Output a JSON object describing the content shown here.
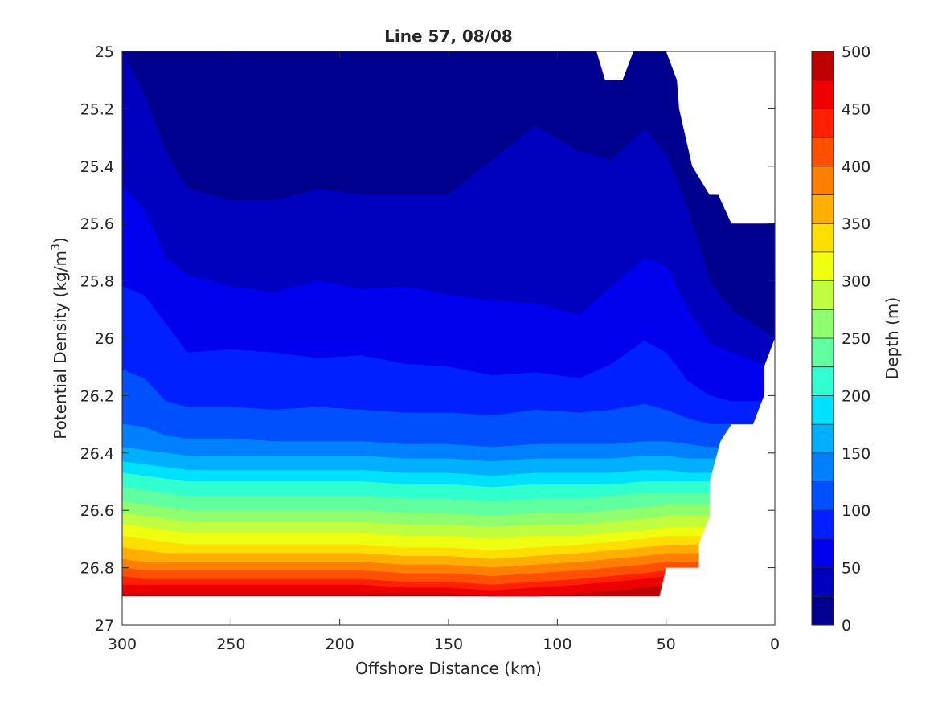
{
  "chart_data": {
    "type": "filled-contour",
    "title": "Line 57, 08/08",
    "xlabel": "Offshore Distance (km)",
    "ylabel": "Potential Density (kg/m3)",
    "ylabel_main": "Potential Density (kg/m",
    "ylabel_sup": "3",
    "ylabel_close": ")",
    "colorbar_label": "Depth (m)",
    "xlim": [
      300,
      0
    ],
    "x_reversed": true,
    "ylim": [
      25,
      27
    ],
    "y_reversed": true,
    "x_ticks": [
      "300",
      "250",
      "200",
      "150",
      "100",
      "50",
      "0"
    ],
    "x_tick_values": [
      300,
      250,
      200,
      150,
      100,
      50,
      0
    ],
    "y_ticks": [
      "25",
      "25.2",
      "25.4",
      "25.6",
      "25.8",
      "26",
      "26.2",
      "26.4",
      "26.6",
      "26.8",
      "27"
    ],
    "y_tick_values": [
      25,
      25.2,
      25.4,
      25.6,
      25.8,
      26,
      26.2,
      26.4,
      26.6,
      26.8,
      27
    ],
    "colorbar_ticks": [
      "0",
      "50",
      "100",
      "150",
      "200",
      "250",
      "300",
      "350",
      "400",
      "450",
      "500"
    ],
    "colorbar_tick_values": [
      0,
      50,
      100,
      150,
      200,
      250,
      300,
      350,
      400,
      450,
      500
    ],
    "clim": [
      0,
      500
    ],
    "level_step": 25,
    "colormap": "jet",
    "level_colors": [
      "#00008F",
      "#0000BF",
      "#0000EF",
      "#0020FF",
      "#0050FF",
      "#0080FF",
      "#00B0FF",
      "#00E0FF",
      "#30FFCF",
      "#60FF9F",
      "#90FF6F",
      "#C0FF3F",
      "#EFFF10",
      "#FFDF00",
      "#FFAF00",
      "#FF8000",
      "#FF5000",
      "#FF2000",
      "#EF0000",
      "#BF0000"
    ],
    "contour_x": [
      300,
      290,
      280,
      270,
      250,
      230,
      210,
      190,
      170,
      150,
      130,
      110,
      90,
      75,
      60,
      50,
      40,
      30,
      20,
      10,
      0
    ],
    "isolines": [
      {
        "level": 25,
        "y": [
          25.0,
          25.15,
          25.35,
          25.48,
          25.52,
          25.52,
          25.48,
          25.5,
          25.5,
          25.5,
          25.38,
          25.26,
          25.35,
          25.38,
          25.27,
          25.36,
          25.55,
          25.8,
          25.9,
          25.95,
          26.0
        ]
      },
      {
        "level": 50,
        "y": [
          25.47,
          25.55,
          25.72,
          25.78,
          25.82,
          25.84,
          25.8,
          25.83,
          25.82,
          25.85,
          25.87,
          25.88,
          25.92,
          25.82,
          25.72,
          25.75,
          25.9,
          26.02,
          26.05,
          26.08,
          26.1
        ]
      },
      {
        "level": 75,
        "y": [
          25.82,
          25.85,
          25.95,
          26.05,
          26.04,
          26.05,
          26.07,
          26.06,
          26.09,
          26.1,
          26.13,
          26.12,
          26.14,
          26.09,
          26.01,
          26.05,
          26.15,
          26.2,
          26.22,
          26.22,
          26.22
        ]
      },
      {
        "level": 100,
        "y": [
          26.11,
          26.14,
          26.22,
          26.24,
          26.24,
          26.25,
          26.24,
          26.25,
          26.26,
          26.26,
          26.27,
          26.25,
          26.26,
          26.25,
          26.23,
          26.25,
          26.28,
          26.3,
          26.3,
          26.3,
          26.3
        ]
      },
      {
        "level": 125,
        "y": [
          26.3,
          26.31,
          26.34,
          26.35,
          26.35,
          26.36,
          26.36,
          26.36,
          26.37,
          26.37,
          26.38,
          26.37,
          26.37,
          26.37,
          26.36,
          26.36,
          26.37,
          26.38,
          26.38,
          26.38,
          26.38
        ]
      },
      {
        "level": 150,
        "y": [
          26.38,
          26.39,
          26.4,
          26.41,
          26.41,
          26.41,
          26.41,
          26.41,
          26.42,
          26.42,
          26.43,
          26.42,
          26.42,
          26.42,
          26.41,
          26.41,
          26.42,
          26.42,
          26.42,
          26.42,
          26.42
        ]
      },
      {
        "level": 175,
        "y": [
          26.43,
          26.44,
          26.45,
          26.46,
          26.46,
          26.46,
          26.46,
          26.46,
          26.47,
          26.47,
          26.48,
          26.47,
          26.47,
          26.47,
          26.46,
          26.46,
          26.47,
          26.47,
          26.47,
          26.47,
          26.47
        ]
      },
      {
        "level": 200,
        "y": [
          26.47,
          26.48,
          26.49,
          26.5,
          26.5,
          26.5,
          26.5,
          26.5,
          26.51,
          26.51,
          26.52,
          26.51,
          26.51,
          26.51,
          26.5,
          26.5,
          26.5,
          26.5,
          26.5,
          26.5,
          26.5
        ]
      },
      {
        "level": 225,
        "y": [
          26.52,
          26.53,
          26.54,
          26.55,
          26.55,
          26.55,
          26.55,
          26.55,
          26.56,
          26.56,
          26.57,
          26.56,
          26.56,
          26.55,
          26.54,
          26.54,
          26.54,
          26.54,
          26.54,
          26.54,
          26.54
        ]
      },
      {
        "level": 250,
        "y": [
          26.57,
          26.58,
          26.59,
          26.6,
          26.6,
          26.6,
          26.6,
          26.6,
          26.61,
          26.61,
          26.62,
          26.61,
          26.61,
          26.6,
          26.59,
          26.58,
          26.58,
          26.58,
          26.58,
          26.58,
          26.58
        ]
      },
      {
        "level": 275,
        "y": [
          26.61,
          26.62,
          26.63,
          26.64,
          26.64,
          26.64,
          26.64,
          26.64,
          26.65,
          26.65,
          26.66,
          26.65,
          26.65,
          26.64,
          26.63,
          26.62,
          26.62,
          26.62,
          26.62,
          26.62,
          26.62
        ]
      },
      {
        "level": 300,
        "y": [
          26.65,
          26.66,
          26.67,
          26.68,
          26.68,
          26.68,
          26.68,
          26.68,
          26.69,
          26.69,
          26.7,
          26.69,
          26.69,
          26.68,
          26.67,
          26.66,
          26.66,
          26.66,
          26.66,
          26.66,
          26.66
        ]
      },
      {
        "level": 325,
        "y": [
          26.69,
          26.7,
          26.71,
          26.72,
          26.72,
          26.72,
          26.72,
          26.72,
          26.73,
          26.73,
          26.74,
          26.73,
          26.72,
          26.71,
          26.7,
          26.69,
          26.69,
          26.69,
          26.69,
          26.69,
          26.69
        ]
      },
      {
        "level": 350,
        "y": [
          26.73,
          26.74,
          26.75,
          26.75,
          26.75,
          26.75,
          26.75,
          26.75,
          26.76,
          26.76,
          26.77,
          26.76,
          26.75,
          26.74,
          26.73,
          26.72,
          26.72,
          26.72,
          26.72,
          26.72,
          26.72
        ]
      },
      {
        "level": 375,
        "y": [
          26.77,
          26.78,
          26.78,
          26.78,
          26.78,
          26.78,
          26.78,
          26.78,
          26.79,
          26.79,
          26.8,
          26.79,
          26.78,
          26.77,
          26.76,
          26.75,
          26.75,
          26.75,
          26.75,
          26.75,
          26.75
        ]
      },
      {
        "level": 400,
        "y": [
          26.8,
          26.81,
          26.81,
          26.81,
          26.81,
          26.81,
          26.81,
          26.81,
          26.82,
          26.82,
          26.83,
          26.82,
          26.81,
          26.8,
          26.79,
          26.78,
          26.78,
          26.78,
          26.78,
          26.78,
          26.78
        ]
      },
      {
        "level": 425,
        "y": [
          26.83,
          26.84,
          26.84,
          26.84,
          26.84,
          26.84,
          26.84,
          26.84,
          26.85,
          26.85,
          26.86,
          26.85,
          26.84,
          26.83,
          26.82,
          26.81,
          26.81,
          26.81,
          26.81,
          26.81,
          26.81
        ]
      },
      {
        "level": 450,
        "y": [
          26.86,
          26.86,
          26.86,
          26.86,
          26.86,
          26.86,
          26.86,
          26.86,
          26.87,
          26.87,
          26.88,
          26.87,
          26.86,
          26.85,
          26.84,
          26.83,
          26.83,
          26.83,
          26.83,
          26.83,
          26.83
        ]
      },
      {
        "level": 475,
        "y": [
          26.89,
          26.89,
          26.89,
          26.89,
          26.89,
          26.89,
          26.89,
          26.89,
          26.89,
          26.89,
          26.9,
          26.9,
          26.89,
          26.88,
          26.87,
          26.86,
          26.86,
          26.86,
          26.86,
          26.86,
          26.86
        ]
      }
    ],
    "data_mask": {
      "top_boundary": [
        [
          300,
          25.0
        ],
        [
          82,
          25.0
        ],
        [
          78,
          25.1
        ],
        [
          70,
          25.1
        ],
        [
          65,
          25.0
        ],
        [
          50,
          25.0
        ],
        [
          45,
          25.1
        ],
        [
          44,
          25.2
        ],
        [
          38,
          25.4
        ],
        [
          30,
          25.5
        ],
        [
          26,
          25.5
        ],
        [
          20,
          25.6
        ],
        [
          0,
          25.6
        ]
      ],
      "bottom_boundary": [
        [
          300,
          26.9
        ],
        [
          53,
          26.9
        ],
        [
          50,
          26.8
        ],
        [
          35,
          26.8
        ],
        [
          35,
          26.72
        ],
        [
          30,
          26.62
        ],
        [
          30,
          26.5
        ],
        [
          25,
          26.36
        ],
        [
          20,
          26.3
        ],
        [
          10,
          26.3
        ],
        [
          5,
          26.2
        ],
        [
          5,
          26.1
        ],
        [
          0,
          26.0
        ]
      ]
    }
  }
}
